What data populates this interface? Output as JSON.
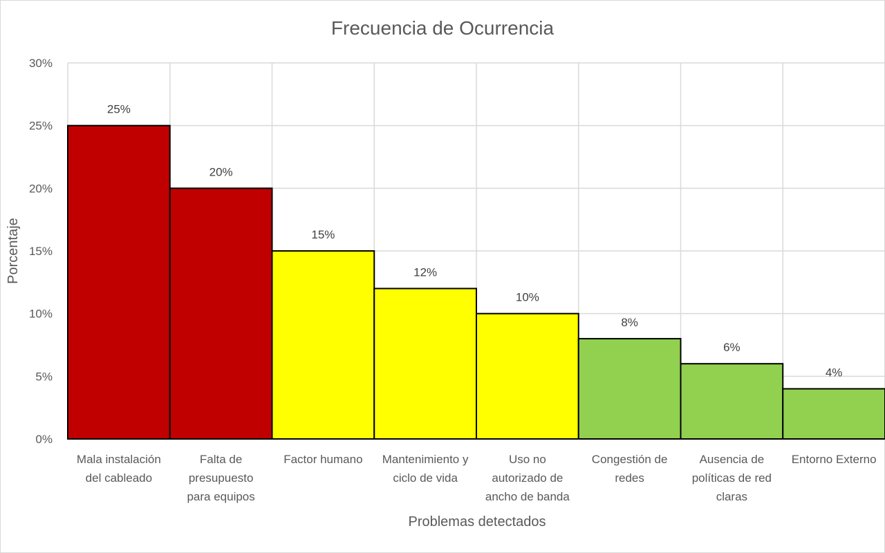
{
  "chart_data": {
    "type": "bar",
    "title": "Frecuencia de Ocurrencia",
    "xlabel": "Problemas detectados",
    "ylabel": "Porcentaje",
    "ylim": [
      0,
      30
    ],
    "yticks": [
      "0%",
      "5%",
      "10%",
      "15%",
      "20%",
      "25%",
      "30%"
    ],
    "grid": true,
    "legend": "none",
    "categories": [
      [
        "Mala instalación",
        "del cableado"
      ],
      [
        "Falta de",
        "presupuesto",
        "para equipos"
      ],
      [
        "Factor humano"
      ],
      [
        "Mantenimiento y",
        "ciclo de vida"
      ],
      [
        "Uso no",
        "autorizado de",
        "ancho de banda"
      ],
      [
        "Congestión de",
        "redes"
      ],
      [
        "Ausencia de",
        "políticas de red",
        "claras"
      ],
      [
        "Entorno Externo"
      ]
    ],
    "values": [
      25,
      20,
      15,
      12,
      10,
      8,
      6,
      4
    ],
    "data_labels": [
      "25%",
      "20%",
      "15%",
      "12%",
      "10%",
      "8%",
      "6%",
      "4%"
    ],
    "colors": [
      "#c00000",
      "#c00000",
      "#ffff00",
      "#ffff00",
      "#ffff00",
      "#92d050",
      "#92d050",
      "#92d050"
    ]
  }
}
